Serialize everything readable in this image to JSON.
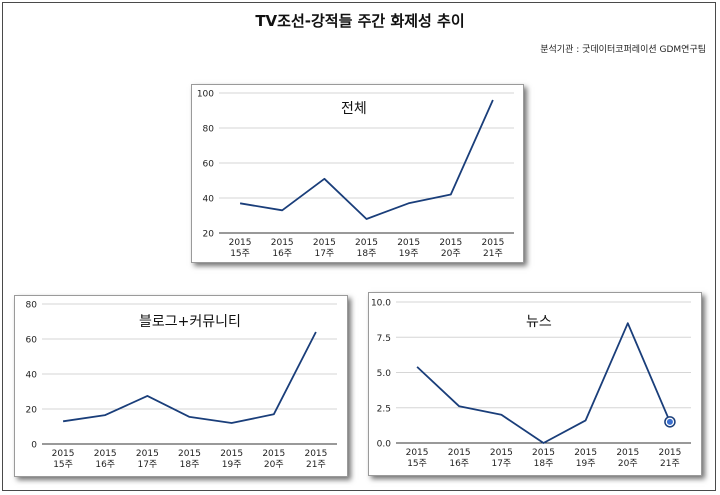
{
  "title": "TV조선-강적들  주간 화제성 추이",
  "source": "분석기관 : 굿데이터코퍼레이션  GDM연구팀",
  "colors": {
    "line": "#1a3e7a",
    "grid": "#d6d6d6",
    "axis": "#333333",
    "marker_fill": "#3a6fd0"
  },
  "chart_data": [
    {
      "type": "line",
      "title": "전체",
      "categories": [
        "2015 15주",
        "2015 16주",
        "2015 17주",
        "2015 18주",
        "2015 19주",
        "2015 20주",
        "2015 21주"
      ],
      "x_ticks": [
        [
          "2015",
          "15주"
        ],
        [
          "2015",
          "16주"
        ],
        [
          "2015",
          "17주"
        ],
        [
          "2015",
          "18주"
        ],
        [
          "2015",
          "19주"
        ],
        [
          "2015",
          "20주"
        ],
        [
          "2015",
          "21주"
        ]
      ],
      "values": [
        37,
        33,
        51,
        28,
        37,
        42,
        96
      ],
      "ylim": [
        20,
        100
      ],
      "yticks": [
        "20",
        "40",
        "60",
        "80",
        "100"
      ],
      "ytick_values": [
        20,
        40,
        60,
        80,
        100
      ],
      "grid": true
    },
    {
      "type": "line",
      "title": "블로그+커뮤니티",
      "categories": [
        "2015 15주",
        "2015 16주",
        "2015 17주",
        "2015 18주",
        "2015 19주",
        "2015 20주",
        "2015 21주"
      ],
      "x_ticks": [
        [
          "2015",
          "15주"
        ],
        [
          "2015",
          "16주"
        ],
        [
          "2015",
          "17주"
        ],
        [
          "2015",
          "18주"
        ],
        [
          "2015",
          "19주"
        ],
        [
          "2015",
          "20주"
        ],
        [
          "2015",
          "21주"
        ]
      ],
      "values": [
        13,
        16.5,
        27.5,
        15.5,
        12,
        17,
        64
      ],
      "ylim": [
        0,
        80
      ],
      "yticks": [
        "0",
        "20",
        "40",
        "60",
        "80"
      ],
      "ytick_values": [
        0,
        20,
        40,
        60,
        80
      ],
      "grid": true
    },
    {
      "type": "line",
      "title": "뉴스",
      "categories": [
        "2015 15주",
        "2015 16주",
        "2015 17주",
        "2015 18주",
        "2015 19주",
        "2015 20주",
        "2015 21주"
      ],
      "x_ticks": [
        [
          "2015",
          "15주"
        ],
        [
          "2015",
          "16주"
        ],
        [
          "2015",
          "17주"
        ],
        [
          "2015",
          "18주"
        ],
        [
          "2015",
          "19주"
        ],
        [
          "2015",
          "20주"
        ],
        [
          "2015",
          "21주"
        ]
      ],
      "values": [
        5.4,
        2.6,
        2.0,
        0.0,
        1.6,
        8.5,
        1.5
      ],
      "ylim": [
        0,
        10
      ],
      "yticks": [
        "0.0",
        "2.5",
        "5.0",
        "7.5",
        "10.0"
      ],
      "ytick_values": [
        0,
        2.5,
        5,
        7.5,
        10
      ],
      "grid": true,
      "highlight_last_point": true
    }
  ]
}
